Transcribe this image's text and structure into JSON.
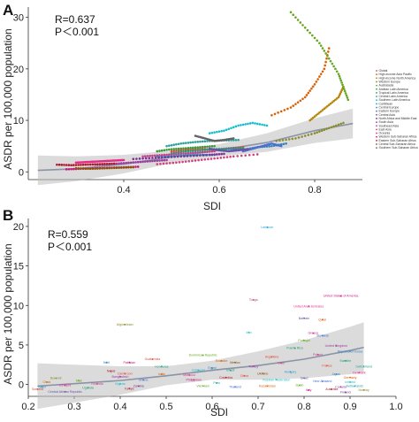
{
  "panels": [
    {
      "letter": "A",
      "r_text": "R=0.637",
      "p_text": "P＜0.001"
    },
    {
      "letter": "B",
      "r_text": "R=0.559",
      "p_text": "P＜0.001"
    }
  ],
  "chart_data": [
    {
      "type": "scatter",
      "title": "",
      "xlabel": "SDI",
      "ylabel": "ASDR per 100,000 population",
      "xlim": [
        0.2,
        0.9
      ],
      "ylim": [
        -1.5,
        32
      ],
      "x_ticks": [
        0.4,
        0.6,
        0.8
      ],
      "y_ticks": [
        0,
        10,
        20,
        30
      ],
      "grid": false,
      "legend_position": "right",
      "legend": [
        "Global",
        "High-income Asia Pacific",
        "High-income North America",
        "Western Europe",
        "Australasia",
        "Andean Latin America",
        "Tropical Latin America",
        "Central Latin America",
        "Southern Latin America",
        "Caribbean",
        "Central Europe",
        "Eastern Europe",
        "Central Asia",
        "North Africa and Middle East",
        "South Asia",
        "Southeast Asia",
        "East Asia",
        "Oceania",
        "Western Sub-Saharan Africa",
        "Eastern Sub-Saharan Africa",
        "Central Sub-Saharan Africa",
        "Southern Sub-Saharan Africa"
      ],
      "series_colors": [
        "#e34a33",
        "#d95f02",
        "#b8860b",
        "#8c8c2e",
        "#66a61e",
        "#3a9a3a",
        "#1b9e77",
        "#2aa198",
        "#17becf",
        "#1f9fd0",
        "#3182bd",
        "#4a6fd0",
        "#6a51a3",
        "#7b3294",
        "#9e3a9e",
        "#c2448a",
        "#d0407a",
        "#e7298a",
        "#c51b7d",
        "#b2182b",
        "#8c510a",
        "#636363"
      ],
      "series": [
        {
          "name": "Global",
          "x": [
            0.5,
            0.53,
            0.56,
            0.59,
            0.62,
            0.65
          ],
          "y": [
            4.0,
            4.3,
            4.5,
            4.3,
            4.6,
            4.8
          ]
        },
        {
          "name": "High-income Asia Pacific",
          "x": [
            0.71,
            0.75,
            0.78,
            0.8,
            0.82,
            0.83
          ],
          "y": [
            11.0,
            12.5,
            14.5,
            17.0,
            20.0,
            24.0
          ]
        },
        {
          "name": "High-income North America",
          "x": [
            0.79,
            0.81,
            0.83,
            0.85,
            0.86
          ],
          "y": [
            10.0,
            11.5,
            13.0,
            14.5,
            16.5
          ]
        },
        {
          "name": "Western Europe",
          "x": [
            0.72,
            0.76,
            0.8,
            0.83,
            0.86
          ],
          "y": [
            6.0,
            6.5,
            7.5,
            8.5,
            9.5
          ]
        },
        {
          "name": "Australasia",
          "x": [
            0.75,
            0.78,
            0.81,
            0.83,
            0.85,
            0.86,
            0.87
          ],
          "y": [
            31.0,
            28.0,
            25.0,
            22.0,
            19.0,
            16.5,
            14.0
          ]
        },
        {
          "name": "Andean Latin America",
          "x": [
            0.47,
            0.5,
            0.53,
            0.56,
            0.59
          ],
          "y": [
            4.0,
            4.4,
            4.6,
            4.8,
            5.0
          ]
        },
        {
          "name": "Tropical Latin America",
          "x": [
            0.5,
            0.53,
            0.56,
            0.59,
            0.62,
            0.65
          ],
          "y": [
            3.6,
            4.0,
            4.2,
            4.4,
            4.5,
            4.6
          ]
        },
        {
          "name": "Central Latin America",
          "x": [
            0.49,
            0.52,
            0.55,
            0.58,
            0.61,
            0.64
          ],
          "y": [
            5.0,
            5.5,
            5.8,
            6.0,
            6.1,
            6.2
          ]
        },
        {
          "name": "Southern Latin America",
          "x": [
            0.58,
            0.61,
            0.64,
            0.67,
            0.7
          ],
          "y": [
            7.5,
            8.0,
            9.0,
            9.5,
            9.0
          ]
        },
        {
          "name": "Caribbean",
          "x": [
            0.47,
            0.5,
            0.53,
            0.56,
            0.59
          ],
          "y": [
            3.0,
            3.1,
            3.2,
            3.3,
            3.3
          ]
        },
        {
          "name": "Central Europe",
          "x": [
            0.62,
            0.65,
            0.68,
            0.71,
            0.74
          ],
          "y": [
            4.5,
            4.3,
            4.8,
            5.0,
            5.5
          ]
        },
        {
          "name": "Eastern Europe",
          "x": [
            0.65,
            0.67,
            0.69,
            0.71,
            0.73
          ],
          "y": [
            4.0,
            4.5,
            5.0,
            5.5,
            5.0
          ]
        },
        {
          "name": "Central Asia",
          "x": [
            0.58,
            0.6,
            0.62,
            0.64,
            0.66
          ],
          "y": [
            4.5,
            4.2,
            4.0,
            4.2,
            4.4
          ]
        },
        {
          "name": "North Africa and Middle East",
          "x": [
            0.42,
            0.46,
            0.5,
            0.54,
            0.58,
            0.61
          ],
          "y": [
            2.5,
            2.7,
            2.9,
            3.1,
            3.3,
            3.5
          ]
        },
        {
          "name": "South Asia",
          "x": [
            0.34,
            0.37,
            0.4,
            0.43,
            0.46,
            0.49
          ],
          "y": [
            1.4,
            1.5,
            1.7,
            1.9,
            2.1,
            2.3
          ]
        },
        {
          "name": "Southeast Asia",
          "x": [
            0.44,
            0.47,
            0.5,
            0.53,
            0.56,
            0.59
          ],
          "y": [
            3.0,
            3.2,
            3.4,
            3.6,
            3.8,
            4.0
          ]
        },
        {
          "name": "East Asia",
          "x": [
            0.47,
            0.51,
            0.55,
            0.59,
            0.63,
            0.68
          ],
          "y": [
            1.5,
            1.8,
            2.2,
            2.6,
            3.0,
            3.4
          ]
        },
        {
          "name": "Oceania",
          "x": [
            0.3,
            0.32,
            0.34,
            0.36,
            0.38,
            0.4
          ],
          "y": [
            1.8,
            1.9,
            2.0,
            2.1,
            2.2,
            2.3
          ]
        },
        {
          "name": "Western Sub-Saharan Africa",
          "x": [
            0.28,
            0.31,
            0.34,
            0.37,
            0.4,
            0.43
          ],
          "y": [
            0.5,
            0.6,
            0.7,
            0.8,
            0.9,
            1.0
          ]
        },
        {
          "name": "Eastern Sub-Saharan Africa",
          "x": [
            0.26,
            0.29,
            0.32,
            0.35,
            0.38
          ],
          "y": [
            1.4,
            1.3,
            1.4,
            1.5,
            1.6
          ]
        },
        {
          "name": "Central Sub-Saharan Africa",
          "x": [
            0.3,
            0.33,
            0.36,
            0.39,
            0.42
          ],
          "y": [
            0.7,
            0.6,
            0.7,
            0.8,
            0.9
          ]
        },
        {
          "name": "Southern Sub-Saharan Africa",
          "x": [
            0.55,
            0.57,
            0.59,
            0.61,
            0.63
          ],
          "y": [
            7.0,
            6.5,
            6.0,
            6.2,
            6.5
          ]
        }
      ],
      "trend": {
        "x": [
          0.22,
          0.3,
          0.4,
          0.5,
          0.6,
          0.7,
          0.8,
          0.88
        ],
        "y": [
          0.3,
          0.6,
          1.5,
          2.9,
          4.2,
          5.7,
          8.0,
          9.4
        ]
      }
    },
    {
      "type": "scatter",
      "title": "",
      "xlabel": "SDI",
      "ylabel": "ASDR per 100,000 population",
      "xlim": [
        0.2,
        1.0
      ],
      "ylim": [
        -1.5,
        21
      ],
      "x_ticks": [
        0.2,
        0.3,
        0.4,
        0.5,
        0.6,
        0.7,
        0.8,
        0.9,
        1.0
      ],
      "y_ticks": [
        0,
        5,
        10,
        15,
        20
      ],
      "grid": false,
      "country_labels": [
        {
          "text": "Lebanon",
          "x": 0.72,
          "y": 19.9,
          "color": "#1f9fd0"
        },
        {
          "text": "Tonga",
          "x": 0.69,
          "y": 10.7,
          "color": "#c2448a"
        },
        {
          "text": "Afghanistan",
          "x": 0.41,
          "y": 7.6,
          "color": "#8c8c2e"
        },
        {
          "text": "United States of America",
          "x": 0.88,
          "y": 11.2,
          "color": "#c51b7d"
        },
        {
          "text": "United Arab Emirates",
          "x": 0.81,
          "y": 9.9,
          "color": "#e7298a"
        },
        {
          "text": "Iran",
          "x": 0.68,
          "y": 6.6,
          "color": "#17becf"
        },
        {
          "text": "Bahrain",
          "x": 0.8,
          "y": 8.4,
          "color": "#6a51a3"
        },
        {
          "text": "Qatar",
          "x": 0.84,
          "y": 8.2,
          "color": "#d95f02"
        },
        {
          "text": "Greece",
          "x": 0.82,
          "y": 6.5,
          "color": "#c51b7d"
        },
        {
          "text": "Slovakia",
          "x": 0.84,
          "y": 6.2,
          "color": "#4a6fd0"
        },
        {
          "text": "Portugal",
          "x": 0.8,
          "y": 5.6,
          "color": "#66a61e"
        },
        {
          "text": "United Kingdom",
          "x": 0.87,
          "y": 4.9,
          "color": "#9e3a9e"
        },
        {
          "text": "Republic of Korea",
          "x": 0.9,
          "y": 4.2,
          "color": "#3182bd"
        },
        {
          "text": "Poland",
          "x": 0.83,
          "y": 3.8,
          "color": "#c2448a"
        },
        {
          "text": "Puerto Rico",
          "x": 0.78,
          "y": 4.6,
          "color": "#1b9e77"
        },
        {
          "text": "Switzerland",
          "x": 0.93,
          "y": 2.3,
          "color": "#2aa198"
        },
        {
          "text": "Argentina",
          "x": 0.73,
          "y": 3.5,
          "color": "#e34a33"
        },
        {
          "text": "Ecuador",
          "x": 0.62,
          "y": 3.0,
          "color": "#d95f02"
        },
        {
          "text": "Dominican Republic",
          "x": 0.58,
          "y": 3.7,
          "color": "#66a61e"
        },
        {
          "text": "Mexico",
          "x": 0.65,
          "y": 2.8,
          "color": "#8c510a"
        },
        {
          "text": "Guatemala",
          "x": 0.47,
          "y": 3.2,
          "color": "#e34a33"
        },
        {
          "text": "Honduras",
          "x": 0.49,
          "y": 2.3,
          "color": "#1b9e77"
        },
        {
          "text": "Pakistan",
          "x": 0.42,
          "y": 2.8,
          "color": "#c51b7d"
        },
        {
          "text": "Nepal",
          "x": 0.38,
          "y": 1.7,
          "color": "#b2182b"
        },
        {
          "text": "Bangladesh",
          "x": 0.4,
          "y": 1.0,
          "color": "#9e3a9e"
        },
        {
          "text": "Haiti",
          "x": 0.37,
          "y": 2.8,
          "color": "#3182bd"
        },
        {
          "text": "Nigeria",
          "x": 0.4,
          "y": 0.1,
          "color": "#17becf"
        },
        {
          "text": "Ethiopia",
          "x": 0.28,
          "y": -0.1,
          "color": "#e7298a"
        },
        {
          "text": "Chad",
          "x": 0.24,
          "y": 0.3,
          "color": "#d95f02"
        },
        {
          "text": "Niger",
          "x": 0.23,
          "y": -0.3,
          "color": "#1f9fd0"
        },
        {
          "text": "Somalia",
          "x": 0.22,
          "y": -0.6,
          "color": "#e34a33"
        },
        {
          "text": "Central African Republic",
          "x": 0.28,
          "y": -0.9,
          "color": "#6a51a3"
        },
        {
          "text": "Burundi",
          "x": 0.26,
          "y": 0.8,
          "color": "#8c8c2e"
        },
        {
          "text": "Mali",
          "x": 0.31,
          "y": 0.5,
          "color": "#66a61e"
        },
        {
          "text": "Rwanda",
          "x": 0.35,
          "y": 0.1,
          "color": "#c2448a"
        },
        {
          "text": "Uganda",
          "x": 0.33,
          "y": -0.4,
          "color": "#1b9e77"
        },
        {
          "text": "Kenya",
          "x": 0.42,
          "y": -0.5,
          "color": "#b2182b"
        },
        {
          "text": "Ghana",
          "x": 0.45,
          "y": 0.6,
          "color": "#4a6fd0"
        },
        {
          "text": "Cameroon",
          "x": 0.41,
          "y": 1.4,
          "color": "#e34a33"
        },
        {
          "text": "Zambia",
          "x": 0.44,
          "y": -0.2,
          "color": "#7b3294"
        },
        {
          "text": "India",
          "x": 0.49,
          "y": 1.3,
          "color": "#d95f02"
        },
        {
          "text": "Indonesia",
          "x": 0.57,
          "y": 1.8,
          "color": "#17becf"
        },
        {
          "text": "Philippines",
          "x": 0.56,
          "y": 0.6,
          "color": "#c51b7d"
        },
        {
          "text": "Viet Nam",
          "x": 0.58,
          "y": -0.2,
          "color": "#66a61e"
        },
        {
          "text": "Egypt",
          "x": 0.6,
          "y": 2.1,
          "color": "#3182bd"
        },
        {
          "text": "Morocco",
          "x": 0.55,
          "y": 1.2,
          "color": "#e7298a"
        },
        {
          "text": "Brazil",
          "x": 0.64,
          "y": 1.8,
          "color": "#1b9e77"
        },
        {
          "text": "Colombia",
          "x": 0.63,
          "y": 0.9,
          "color": "#b2182b"
        },
        {
          "text": "Peru",
          "x": 0.61,
          "y": 0.2,
          "color": "#2aa198"
        },
        {
          "text": "China",
          "x": 0.67,
          "y": 1.1,
          "color": "#e34a33"
        },
        {
          "text": "Thailand",
          "x": 0.65,
          "y": -0.3,
          "color": "#4a6fd0"
        },
        {
          "text": "Turkey",
          "x": 0.69,
          "y": 2.3,
          "color": "#9e3a9e"
        },
        {
          "text": "Ukraine",
          "x": 0.71,
          "y": 1.4,
          "color": "#8c510a"
        },
        {
          "text": "Russian Federation",
          "x": 0.74,
          "y": 0.6,
          "color": "#17becf"
        },
        {
          "text": "Kazakhstan",
          "x": 0.72,
          "y": -0.2,
          "color": "#d95f02"
        },
        {
          "text": "Chile",
          "x": 0.75,
          "y": 2.7,
          "color": "#c2448a"
        },
        {
          "text": "Hungary",
          "x": 0.77,
          "y": 1.6,
          "color": "#1f9fd0"
        },
        {
          "text": "Israel",
          "x": 0.8,
          "y": 0.8,
          "color": "#6a51a3"
        },
        {
          "text": "Spain",
          "x": 0.79,
          "y": -0.1,
          "color": "#66a61e"
        },
        {
          "text": "Italy",
          "x": 0.81,
          "y": -0.7,
          "color": "#c51b7d"
        },
        {
          "text": "France",
          "x": 0.85,
          "y": 2.4,
          "color": "#e34a33"
        },
        {
          "text": "Japan",
          "x": 0.87,
          "y": 1.3,
          "color": "#3182bd"
        },
        {
          "text": "Germany",
          "x": 0.9,
          "y": 0.9,
          "color": "#d95f02"
        },
        {
          "text": "Netherlands",
          "x": 0.91,
          "y": -0.2,
          "color": "#2aa198"
        },
        {
          "text": "Norway",
          "x": 0.93,
          "y": -0.7,
          "color": "#8c8c2e"
        },
        {
          "text": "Denmark",
          "x": 0.92,
          "y": 1.5,
          "color": "#e7298a"
        },
        {
          "text": "Sweden",
          "x": 0.89,
          "y": 3.0,
          "color": "#1b9e77"
        },
        {
          "text": "Australia",
          "x": 0.86,
          "y": -0.6,
          "color": "#b2182b"
        },
        {
          "text": "New Zealand",
          "x": 0.84,
          "y": 0.4,
          "color": "#4a6fd0"
        },
        {
          "text": "Canada",
          "x": 0.88,
          "y": -0.3,
          "color": "#9e3a9e"
        },
        {
          "text": "Iceland",
          "x": 0.9,
          "y": 0.3,
          "color": "#17becf"
        },
        {
          "text": "Finland",
          "x": 0.89,
          "y": -1.0,
          "color": "#7b3294"
        }
      ],
      "trend": {
        "x": [
          0.22,
          0.3,
          0.4,
          0.5,
          0.6,
          0.7,
          0.8,
          0.9,
          0.93
        ],
        "y": [
          -0.2,
          0.1,
          0.5,
          1.1,
          1.8,
          2.4,
          3.2,
          4.3,
          4.7
        ]
      }
    }
  ]
}
